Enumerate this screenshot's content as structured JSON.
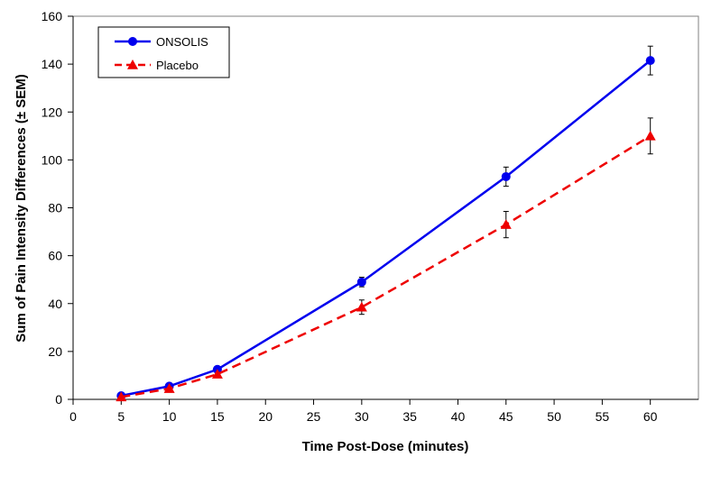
{
  "chart_data": {
    "type": "line",
    "title": "",
    "xlabel": "Time Post-Dose (minutes)",
    "ylabel": "Sum of Pain Intensity Differences (± SEM)",
    "xlim": [
      0,
      65
    ],
    "ylim": [
      0,
      160
    ],
    "xticks": [
      0,
      5,
      10,
      15,
      20,
      25,
      30,
      35,
      40,
      45,
      50,
      55,
      60
    ],
    "yticks": [
      0,
      20,
      40,
      60,
      80,
      100,
      120,
      140,
      160
    ],
    "grid": false,
    "legend_position": "top-left",
    "series": [
      {
        "name": "ONSOLIS",
        "color": "#0000ee",
        "marker": "circle",
        "line_style": "solid",
        "x": [
          5,
          10,
          15,
          30,
          45,
          60
        ],
        "y": [
          1.5,
          5.5,
          12.5,
          49,
          93,
          141.5
        ],
        "err": [
          0,
          0,
          0,
          2,
          4,
          6
        ]
      },
      {
        "name": "Placebo",
        "color": "#ee0000",
        "marker": "triangle",
        "line_style": "dashed",
        "x": [
          5,
          10,
          15,
          30,
          45,
          60
        ],
        "y": [
          1,
          4.5,
          10.5,
          38.5,
          73,
          110
        ],
        "err": [
          0,
          0,
          0,
          3,
          5.5,
          7.5
        ]
      }
    ]
  }
}
